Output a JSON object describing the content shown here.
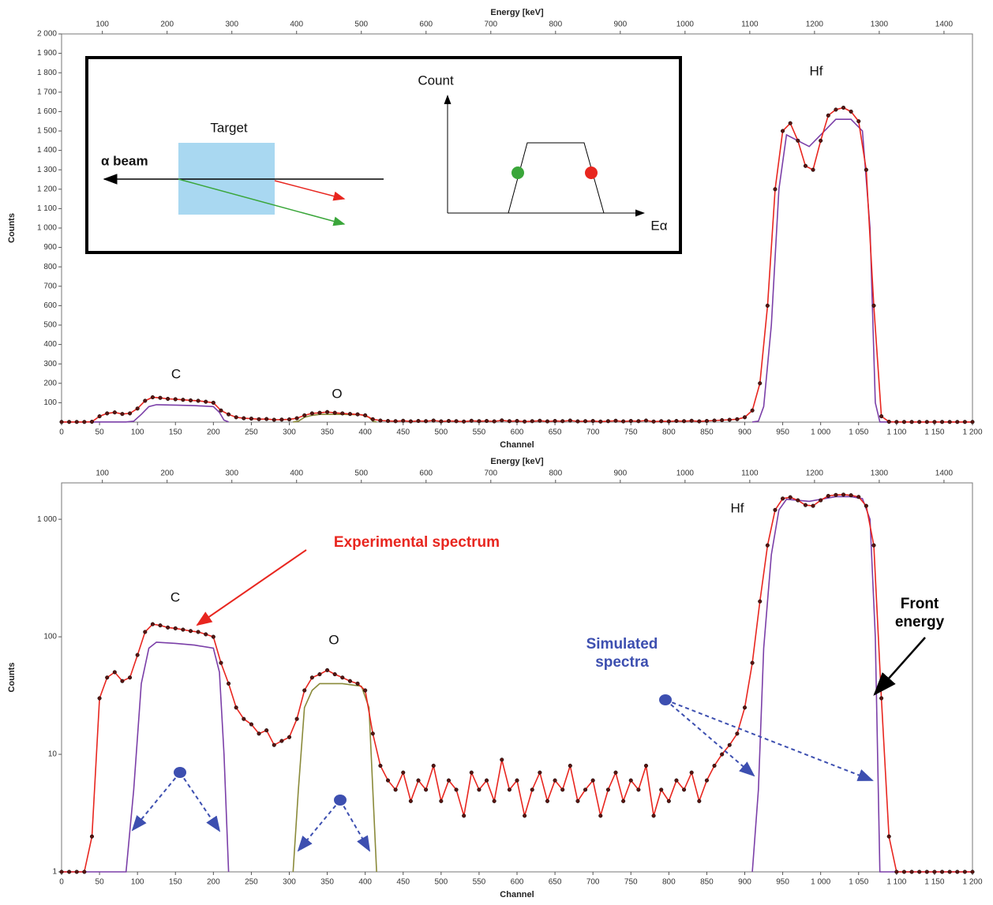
{
  "chart_data": [
    {
      "type": "line",
      "x_label": "Channel",
      "y_label": "Counts",
      "x2_label": "Energy [keV]",
      "xlim": [
        0,
        1200
      ],
      "xticks": [
        0,
        50,
        100,
        150,
        200,
        250,
        300,
        350,
        400,
        450,
        500,
        550,
        600,
        650,
        700,
        750,
        800,
        850,
        900,
        950,
        {
          "value": 1000,
          "label": "1 000"
        },
        {
          "value": 1050,
          "label": "1 050"
        },
        {
          "value": 1100,
          "label": "1 100"
        },
        {
          "value": 1150,
          "label": "1 150"
        },
        {
          "value": 1200,
          "label": "1 200"
        }
      ],
      "x2lim": [
        37,
        1444
      ],
      "x2ticks": [
        100,
        200,
        300,
        400,
        500,
        600,
        700,
        800,
        900,
        1000,
        1100,
        1200,
        1300,
        1400
      ],
      "ylim": [
        0,
        2000
      ],
      "yticks": [
        100,
        200,
        300,
        400,
        500,
        600,
        700,
        800,
        900,
        {
          "value": 1000,
          "label": "1 000"
        },
        {
          "value": 1100,
          "label": "1 100"
        },
        {
          "value": 1200,
          "label": "1 200"
        },
        {
          "value": 1300,
          "label": "1 300"
        },
        {
          "value": 1400,
          "label": "1 400"
        },
        {
          "value": 1500,
          "label": "1 500"
        },
        {
          "value": 1600,
          "label": "1 600"
        },
        {
          "value": 1700,
          "label": "1 700"
        },
        {
          "value": 1800,
          "label": "1 800"
        },
        {
          "value": 1900,
          "label": "1 900"
        },
        {
          "value": 2000,
          "label": "2 000"
        }
      ],
      "log_scale": false,
      "series": [
        {
          "color": "#e8261f",
          "markers": true,
          "x": [
            0,
            10,
            20,
            30,
            40,
            50,
            60,
            70,
            80,
            90,
            100,
            110,
            120,
            130,
            140,
            150,
            160,
            170,
            180,
            190,
            200,
            210,
            220,
            230,
            240,
            250,
            260,
            270,
            280,
            290,
            300,
            310,
            320,
            330,
            340,
            350,
            360,
            370,
            380,
            390,
            400,
            410,
            420,
            430,
            440,
            450,
            460,
            470,
            480,
            490,
            500,
            510,
            520,
            530,
            540,
            550,
            560,
            570,
            580,
            590,
            600,
            610,
            620,
            630,
            640,
            650,
            660,
            670,
            680,
            690,
            700,
            710,
            720,
            730,
            740,
            750,
            760,
            770,
            780,
            790,
            800,
            810,
            820,
            830,
            840,
            850,
            860,
            870,
            880,
            890,
            900,
            910,
            920,
            930,
            940,
            950,
            960,
            970,
            980,
            990,
            1000,
            1010,
            1020,
            1030,
            1040,
            1050,
            1060,
            1070,
            1080,
            1090,
            1100,
            1110,
            1120,
            1130,
            1140,
            1150,
            1160,
            1170,
            1180,
            1190,
            1200
          ],
          "values": [
            1,
            1,
            1,
            1,
            2,
            30,
            45,
            50,
            42,
            45,
            70,
            110,
            128,
            125,
            120,
            118,
            115,
            112,
            110,
            105,
            100,
            60,
            40,
            25,
            20,
            18,
            15,
            16,
            12,
            13,
            14,
            20,
            35,
            45,
            48,
            52,
            48,
            45,
            42,
            40,
            35,
            15,
            8,
            6,
            5,
            7,
            4,
            6,
            5,
            8,
            4,
            6,
            5,
            3,
            7,
            5,
            6,
            4,
            9,
            5,
            6,
            3,
            5,
            7,
            4,
            6,
            5,
            8,
            4,
            5,
            6,
            3,
            5,
            7,
            4,
            6,
            5,
            8,
            3,
            5,
            4,
            6,
            5,
            7,
            4,
            6,
            8,
            10,
            12,
            15,
            25,
            60,
            200,
            600,
            1200,
            1500,
            1540,
            1450,
            1320,
            1300,
            1450,
            1580,
            1610,
            1620,
            1600,
            1550,
            1300,
            600,
            30,
            2,
            1,
            1,
            1,
            1,
            1,
            1,
            1,
            1,
            1,
            1,
            1
          ]
        },
        {
          "color": "#7b3fa8",
          "markers": false,
          "x": [
            0,
            85,
            95,
            105,
            115,
            125,
            150,
            175,
            200,
            208,
            214,
            220
          ],
          "values": [
            1,
            1,
            5,
            40,
            80,
            90,
            88,
            85,
            80,
            50,
            10,
            1
          ]
        },
        {
          "color": "#8a8a3a",
          "markers": false,
          "x": [
            305,
            312,
            320,
            330,
            340,
            370,
            395,
            405,
            410,
            415
          ],
          "values": [
            1,
            5,
            25,
            35,
            40,
            40,
            38,
            25,
            5,
            1
          ]
        },
        {
          "color": "#7b3fa8",
          "markers": false,
          "x": [
            910,
            918,
            925,
            935,
            945,
            955,
            970,
            985,
            1000,
            1020,
            1040,
            1055,
            1065,
            1072,
            1078,
            1200
          ],
          "values": [
            1,
            5,
            80,
            500,
            1200,
            1480,
            1450,
            1420,
            1480,
            1560,
            1560,
            1500,
            1000,
            100,
            1,
            1
          ]
        }
      ],
      "peak_labels": [
        "C",
        "O",
        "Hf"
      ],
      "inset": {
        "target": "Target",
        "beam": "α beam",
        "count": "Count",
        "energy": "Eα"
      }
    },
    {
      "type": "line",
      "x_label": "Channel",
      "y_label": "Counts",
      "x2_label": "Energy [keV]",
      "xlim": [
        0,
        1200
      ],
      "xticks": [
        0,
        50,
        100,
        150,
        200,
        250,
        300,
        350,
        400,
        450,
        500,
        550,
        600,
        650,
        700,
        750,
        800,
        850,
        900,
        950,
        {
          "value": 1000,
          "label": "1 000"
        },
        {
          "value": 1050,
          "label": "1 050"
        },
        {
          "value": 1100,
          "label": "1 100"
        },
        {
          "value": 1150,
          "label": "1 150"
        },
        {
          "value": 1200,
          "label": "1 200"
        }
      ],
      "x2lim": [
        37,
        1444
      ],
      "x2ticks": [
        100,
        200,
        300,
        400,
        500,
        600,
        700,
        800,
        900,
        1000,
        1100,
        1200,
        1300,
        1400
      ],
      "ylim": [
        1,
        2040
      ],
      "yticks": [
        1,
        10,
        100,
        {
          "value": 1000,
          "label": "1 000"
        }
      ],
      "log_scale": true,
      "series": [
        {
          "color": "#e8261f",
          "markers": true,
          "x": [
            0,
            10,
            20,
            30,
            40,
            50,
            60,
            70,
            80,
            90,
            100,
            110,
            120,
            130,
            140,
            150,
            160,
            170,
            180,
            190,
            200,
            210,
            220,
            230,
            240,
            250,
            260,
            270,
            280,
            290,
            300,
            310,
            320,
            330,
            340,
            350,
            360,
            370,
            380,
            390,
            400,
            410,
            420,
            430,
            440,
            450,
            460,
            470,
            480,
            490,
            500,
            510,
            520,
            530,
            540,
            550,
            560,
            570,
            580,
            590,
            600,
            610,
            620,
            630,
            640,
            650,
            660,
            670,
            680,
            690,
            700,
            710,
            720,
            730,
            740,
            750,
            760,
            770,
            780,
            790,
            800,
            810,
            820,
            830,
            840,
            850,
            860,
            870,
            880,
            890,
            900,
            910,
            920,
            930,
            940,
            950,
            960,
            970,
            980,
            990,
            1000,
            1010,
            1020,
            1030,
            1040,
            1050,
            1060,
            1070,
            1080,
            1090,
            1100,
            1110,
            1120,
            1130,
            1140,
            1150,
            1160,
            1170,
            1180,
            1190,
            1200
          ],
          "values": [
            1,
            1,
            1,
            1,
            2,
            30,
            45,
            50,
            42,
            45,
            70,
            110,
            128,
            125,
            120,
            118,
            115,
            112,
            110,
            105,
            100,
            60,
            40,
            25,
            20,
            18,
            15,
            16,
            12,
            13,
            14,
            20,
            35,
            45,
            48,
            52,
            48,
            45,
            42,
            40,
            35,
            15,
            8,
            6,
            5,
            7,
            4,
            6,
            5,
            8,
            4,
            6,
            5,
            3,
            7,
            5,
            6,
            4,
            9,
            5,
            6,
            3,
            5,
            7,
            4,
            6,
            5,
            8,
            4,
            5,
            6,
            3,
            5,
            7,
            4,
            6,
            5,
            8,
            3,
            5,
            4,
            6,
            5,
            7,
            4,
            6,
            8,
            10,
            12,
            15,
            25,
            60,
            200,
            600,
            1200,
            1500,
            1540,
            1450,
            1320,
            1300,
            1450,
            1580,
            1610,
            1620,
            1600,
            1550,
            1300,
            600,
            30,
            2,
            1,
            1,
            1,
            1,
            1,
            1,
            1,
            1,
            1,
            1,
            1
          ]
        },
        {
          "color": "#7b3fa8",
          "markers": false,
          "x": [
            0,
            85,
            95,
            105,
            115,
            125,
            150,
            175,
            200,
            208,
            214,
            220
          ],
          "values": [
            1,
            1,
            5,
            40,
            80,
            90,
            88,
            85,
            80,
            50,
            10,
            1
          ]
        },
        {
          "color": "#8a8a3a",
          "markers": false,
          "x": [
            305,
            312,
            320,
            330,
            340,
            370,
            395,
            405,
            410,
            415
          ],
          "values": [
            1,
            5,
            25,
            35,
            40,
            40,
            38,
            25,
            5,
            1
          ]
        },
        {
          "color": "#7b3fa8",
          "markers": false,
          "x": [
            910,
            918,
            925,
            935,
            945,
            955,
            970,
            985,
            1000,
            1020,
            1040,
            1055,
            1065,
            1072,
            1078,
            1200
          ],
          "values": [
            1,
            5,
            80,
            500,
            1200,
            1480,
            1450,
            1420,
            1480,
            1560,
            1560,
            1500,
            1000,
            100,
            1,
            1
          ]
        }
      ],
      "peak_labels": [
        "C",
        "O",
        "Hf"
      ],
      "annotations": {
        "experimental": "Experimental spectrum",
        "simulated": "Simulated spectra",
        "front": "Front energy"
      }
    }
  ]
}
